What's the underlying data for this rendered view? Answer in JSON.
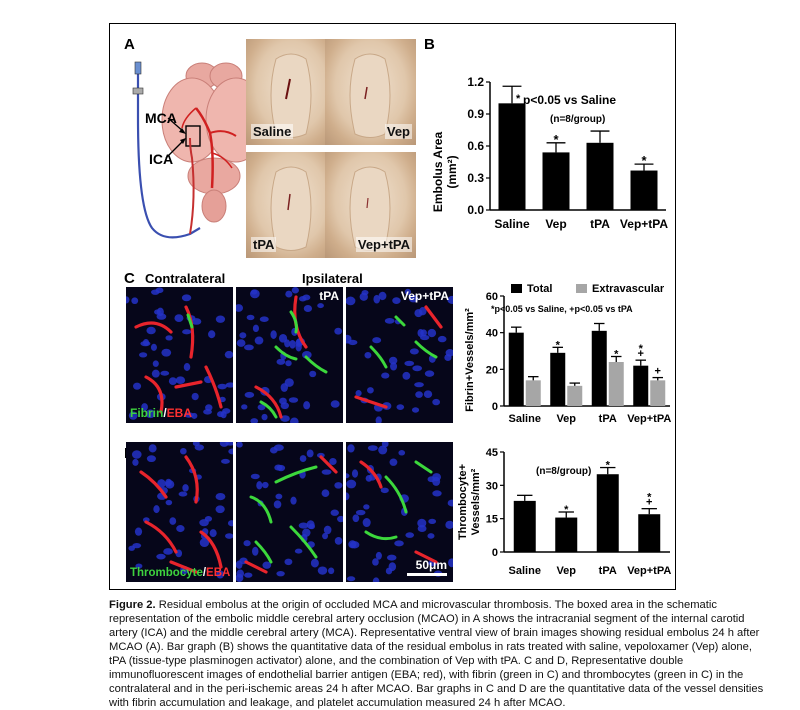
{
  "panels": {
    "a": {
      "label": "A",
      "schematic": {
        "mca": "MCA",
        "ica": "ICA"
      },
      "photos": [
        "Saline",
        "Vep",
        "tPA",
        "Vep+tPA"
      ]
    },
    "b": {
      "label": "B"
    },
    "c": {
      "label": "C",
      "headers": {
        "contralateral": "Contralateral",
        "ipsilateral": "Ipsilateral"
      },
      "image_labels": {
        "tpa": "tPA",
        "veptpa": "Vep+tPA"
      },
      "stain": {
        "green": "Fibrin",
        "sep": "/",
        "red": "EBA"
      }
    },
    "d": {
      "label": "D",
      "stain": {
        "green": "Thrombocyte",
        "sep": "/",
        "red": "EBA"
      },
      "scale_bar": "50μm"
    }
  },
  "chart_data": [
    {
      "id": "B",
      "type": "bar",
      "categories": [
        "Saline",
        "Vep",
        "tPA",
        "Vep+tPA"
      ],
      "series": [
        {
          "values": [
            1.0,
            0.54,
            0.63,
            0.37
          ],
          "errors": [
            0.16,
            0.09,
            0.11,
            0.06
          ],
          "color": "#000000"
        }
      ],
      "ylabel_line1": "Embolus Area",
      "ylabel_line2": "(mm²)",
      "ylim": [
        0,
        1.2
      ],
      "yticks": [
        "0.0",
        "0.3",
        "0.6",
        "0.9",
        "1.2"
      ],
      "significance": [
        "",
        "*",
        "",
        "*"
      ],
      "annotation_star": "*",
      "annotation_text": "p<0.05 vs Saline",
      "annotation_n": "(n=8/group)"
    },
    {
      "id": "C",
      "type": "bar",
      "categories": [
        "Saline",
        "Vep",
        "tPA",
        "Vep+tPA"
      ],
      "series": [
        {
          "name": "Total",
          "values": [
            40,
            29,
            41,
            22
          ],
          "errors": [
            3,
            3,
            4,
            3
          ],
          "color": "#000000"
        },
        {
          "name": "Extravascular",
          "values": [
            14,
            11,
            24,
            14
          ],
          "errors": [
            2,
            1.5,
            3,
            1.5
          ],
          "color": "#a6a6a6"
        }
      ],
      "ylabel": "Fibrin+Vessels/mm²",
      "ylim": [
        0,
        60
      ],
      "yticks": [
        "0",
        "20",
        "40",
        "60"
      ],
      "significance_total": [
        "",
        "*",
        "",
        "*+"
      ],
      "significance_extra": [
        "",
        "",
        "*",
        "+"
      ],
      "annotation": "*p<0.05 vs Saline, +p<0.05 vs tPA"
    },
    {
      "id": "D",
      "type": "bar",
      "categories": [
        "Saline",
        "Vep",
        "tPA",
        "Vep+tPA"
      ],
      "series": [
        {
          "values": [
            23,
            15.5,
            35,
            17
          ],
          "errors": [
            2.5,
            2.5,
            3,
            2.5
          ],
          "color": "#000000"
        }
      ],
      "ylabel_line1": "Thrombocyte+",
      "ylabel_line2": "Vessels/mm²",
      "ylim": [
        0,
        45
      ],
      "yticks": [
        "0",
        "15",
        "30",
        "45"
      ],
      "significance": [
        "",
        "*",
        "*",
        "*+"
      ],
      "annotation": "(n=8/group)"
    }
  ],
  "caption": {
    "title": "Figure 2.",
    "text": " Residual embolus at the origin of occluded MCA and microvascular thrombosis. The boxed area in the schematic representation of the embolic middle cerebral artery occlusion (MCAO) in A shows the intracranial segment of the internal carotid artery (ICA) and the middle cerebral artery (MCA). Representative ventral view of brain images showing residual embolus 24 h after MCAO (A). Bar graph (B) shows the quantitative data of the residual embolus in rats treated with saline, vepoloxamer (Vep) alone, tPA (tissue-type plasminogen activator) alone, and the combination of Vep with tPA. C and D, Representative double immunofluorescent images of endothelial barrier antigen (EBA; red), with fibrin (green in C) and thrombocytes (green in C) in the contralateral and in the peri-ischemic areas 24 h after MCAO. Bar graphs in C and D are the quantitative data of the vessel densities with fibrin accumulation and leakage, and platelet accumulation measured 24 h after MCAO."
  }
}
